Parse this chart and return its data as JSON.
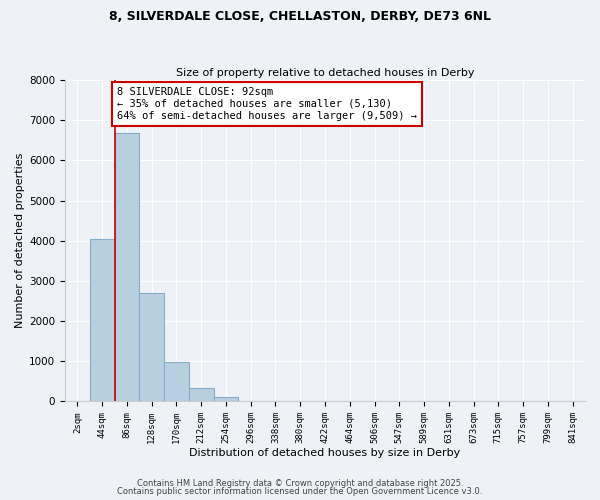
{
  "title_line1": "8, SILVERDALE CLOSE, CHELLASTON, DERBY, DE73 6NL",
  "title_line2": "Size of property relative to detached houses in Derby",
  "xlabel": "Distribution of detached houses by size in Derby",
  "ylabel": "Number of detached properties",
  "bar_labels": [
    "2sqm",
    "44sqm",
    "86sqm",
    "128sqm",
    "170sqm",
    "212sqm",
    "254sqm",
    "296sqm",
    "338sqm",
    "380sqm",
    "422sqm",
    "464sqm",
    "506sqm",
    "547sqm",
    "589sqm",
    "631sqm",
    "673sqm",
    "715sqm",
    "757sqm",
    "799sqm",
    "841sqm"
  ],
  "bar_values": [
    0,
    4050,
    6680,
    2700,
    980,
    330,
    110,
    0,
    0,
    0,
    0,
    0,
    0,
    0,
    0,
    0,
    0,
    0,
    0,
    0,
    0
  ],
  "bar_color": "#b8cfe0",
  "bar_edge_color": "#85adc8",
  "ylim": [
    0,
    8000
  ],
  "yticks": [
    0,
    1000,
    2000,
    3000,
    4000,
    5000,
    6000,
    7000,
    8000
  ],
  "vline_color": "#cc0000",
  "annotation_title": "8 SILVERDALE CLOSE: 92sqm",
  "annotation_line1": "← 35% of detached houses are smaller (5,130)",
  "annotation_line2": "64% of semi-detached houses are larger (9,509) →",
  "annotation_box_color": "#cc0000",
  "footer_line1": "Contains HM Land Registry data © Crown copyright and database right 2025.",
  "footer_line2": "Contains public sector information licensed under the Open Government Licence v3.0.",
  "background_color": "#eef2f7",
  "grid_color": "#ffffff"
}
